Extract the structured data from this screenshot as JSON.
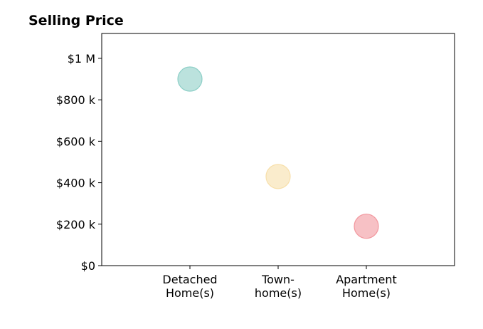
{
  "chart_data": {
    "type": "scatter",
    "title": "Selling Price",
    "xlabel": "",
    "ylabel": "",
    "categories": [
      [
        "Detached",
        "Home(s)"
      ],
      [
        "Town-",
        "home(s)"
      ],
      [
        "Apartment",
        "Home(s)"
      ]
    ],
    "values": [
      900000,
      430000,
      190000
    ],
    "colors": [
      "#8dcfc7",
      "#f7dfaa",
      "#f2979e"
    ],
    "ylim": [
      0,
      1120000
    ],
    "yticks": [
      {
        "value": 0,
        "label": "$0"
      },
      {
        "value": 200000,
        "label": "$200 k"
      },
      {
        "value": 400000,
        "label": "$400 k"
      },
      {
        "value": 600000,
        "label": "$600 k"
      },
      {
        "value": 800000,
        "label": "$800 k"
      },
      {
        "value": 1000000,
        "label": "$1 M"
      }
    ],
    "grid": false,
    "legend": "none"
  }
}
